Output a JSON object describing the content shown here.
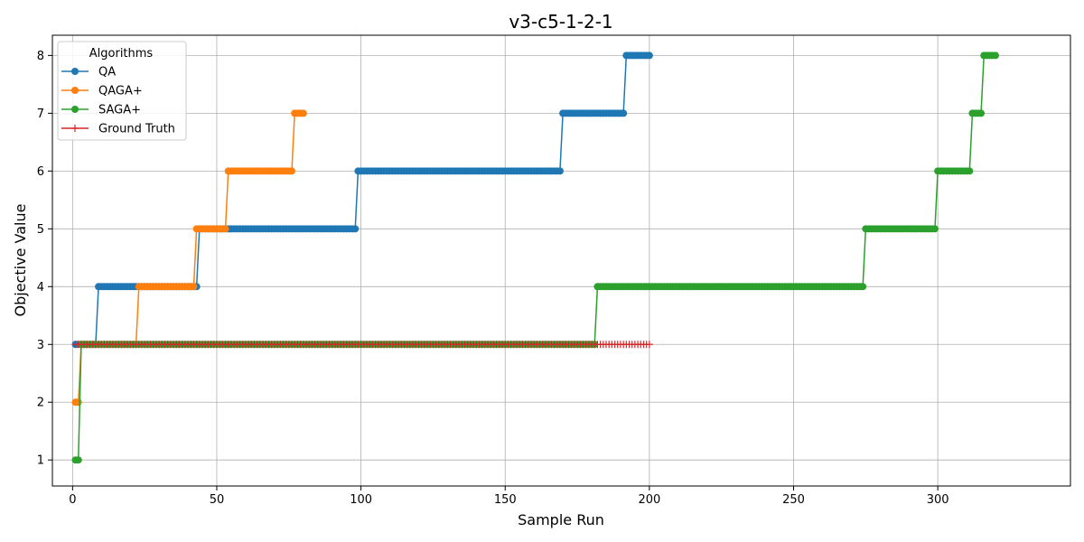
{
  "chart_data": {
    "type": "line",
    "title": "v3-c5-1-2-1",
    "xlabel": "Sample Run",
    "ylabel": "Objective Value",
    "xlim": [
      -7,
      346
    ],
    "ylim": [
      0.55,
      8.35
    ],
    "xticks": [
      0,
      50,
      100,
      150,
      200,
      250,
      300
    ],
    "yticks": [
      1,
      2,
      3,
      4,
      5,
      6,
      7,
      8
    ],
    "grid": true,
    "legend": {
      "title": "Algorithms",
      "placement": "top-left"
    },
    "series": [
      {
        "name": "QA",
        "color": "#1f77b4",
        "marker": "circle",
        "steps": [
          [
            1,
            3
          ],
          [
            9,
            4
          ],
          [
            44,
            5
          ],
          [
            99,
            6
          ],
          [
            170,
            7
          ],
          [
            192,
            8
          ]
        ],
        "x_end": 200
      },
      {
        "name": "QAGA+",
        "color": "#ff7f0e",
        "marker": "circle",
        "steps": [
          [
            1,
            2
          ],
          [
            3,
            3
          ],
          [
            23,
            4
          ],
          [
            43,
            5
          ],
          [
            54,
            6
          ],
          [
            77,
            7
          ]
        ],
        "x_end": 80
      },
      {
        "name": "SAGA+",
        "color": "#2ca02c",
        "marker": "circle",
        "steps": [
          [
            1,
            1
          ],
          [
            3,
            3
          ],
          [
            182,
            4
          ],
          [
            275,
            5
          ],
          [
            300,
            6
          ],
          [
            312,
            7
          ],
          [
            316,
            8
          ]
        ],
        "x_end": 320
      },
      {
        "name": "Ground Truth",
        "color": "#d62728",
        "marker": "plus",
        "steps": [
          [
            1,
            3
          ]
        ],
        "x_end": 200
      }
    ]
  }
}
